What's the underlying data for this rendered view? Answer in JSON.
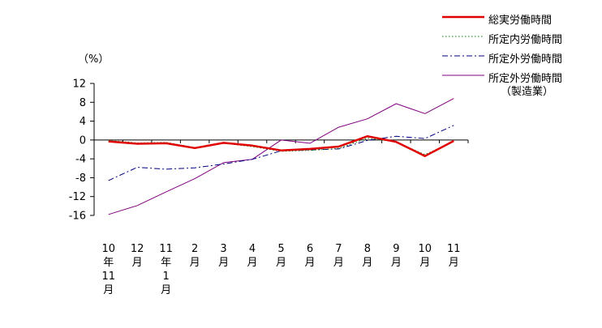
{
  "chart_data": {
    "type": "line",
    "unit_label": "（%）",
    "ylim": [
      -16,
      12
    ],
    "y_ticks": [
      12,
      8,
      4,
      0,
      -4,
      -8,
      -12,
      -16
    ],
    "categories": [
      [
        "10",
        "年",
        "11",
        "月"
      ],
      [
        "12",
        "月"
      ],
      [
        "11",
        "年",
        "1",
        "月"
      ],
      [
        "2",
        "月"
      ],
      [
        "3",
        "月"
      ],
      [
        "4",
        "月"
      ],
      [
        "5",
        "月"
      ],
      [
        "6",
        "月"
      ],
      [
        "7",
        "月"
      ],
      [
        "8",
        "月"
      ],
      [
        "9",
        "月"
      ],
      [
        "10",
        "月"
      ],
      [
        "11",
        "月"
      ]
    ],
    "series": [
      {
        "name": "総実労働時間",
        "color": "#e00000",
        "style": "solid-thick",
        "values": [
          -0.3,
          -0.8,
          -0.7,
          -1.7,
          -0.6,
          -1.2,
          -2.2,
          -1.9,
          -1.4,
          0.8,
          -0.4,
          -3.4,
          -0.2
        ]
      },
      {
        "name": "所定内労働時間",
        "color": "#008000",
        "style": "dotted",
        "values": [
          -0.1,
          -0.6,
          -0.5,
          -1.6,
          -0.7,
          -1.4,
          -2.4,
          -2.2,
          -1.8,
          0.4,
          -0.4,
          -3.1,
          -0.3
        ]
      },
      {
        "name": "所定外労働時間",
        "color": "#000080",
        "style": "dashdot",
        "values": [
          -8.6,
          -5.8,
          -6.2,
          -5.9,
          -5.1,
          -4.1,
          -2.3,
          -2.1,
          -1.9,
          -0.1,
          0.8,
          0.3,
          3.1
        ]
      },
      {
        "name": "所定外労働時間",
        "subname": "（製造業）",
        "color": "#7f007f",
        "style": "solid",
        "values": [
          -15.8,
          -13.9,
          -11.0,
          -8.2,
          -4.8,
          -4.1,
          0.0,
          -0.7,
          2.7,
          4.5,
          7.7,
          5.6,
          8.8
        ]
      }
    ]
  }
}
